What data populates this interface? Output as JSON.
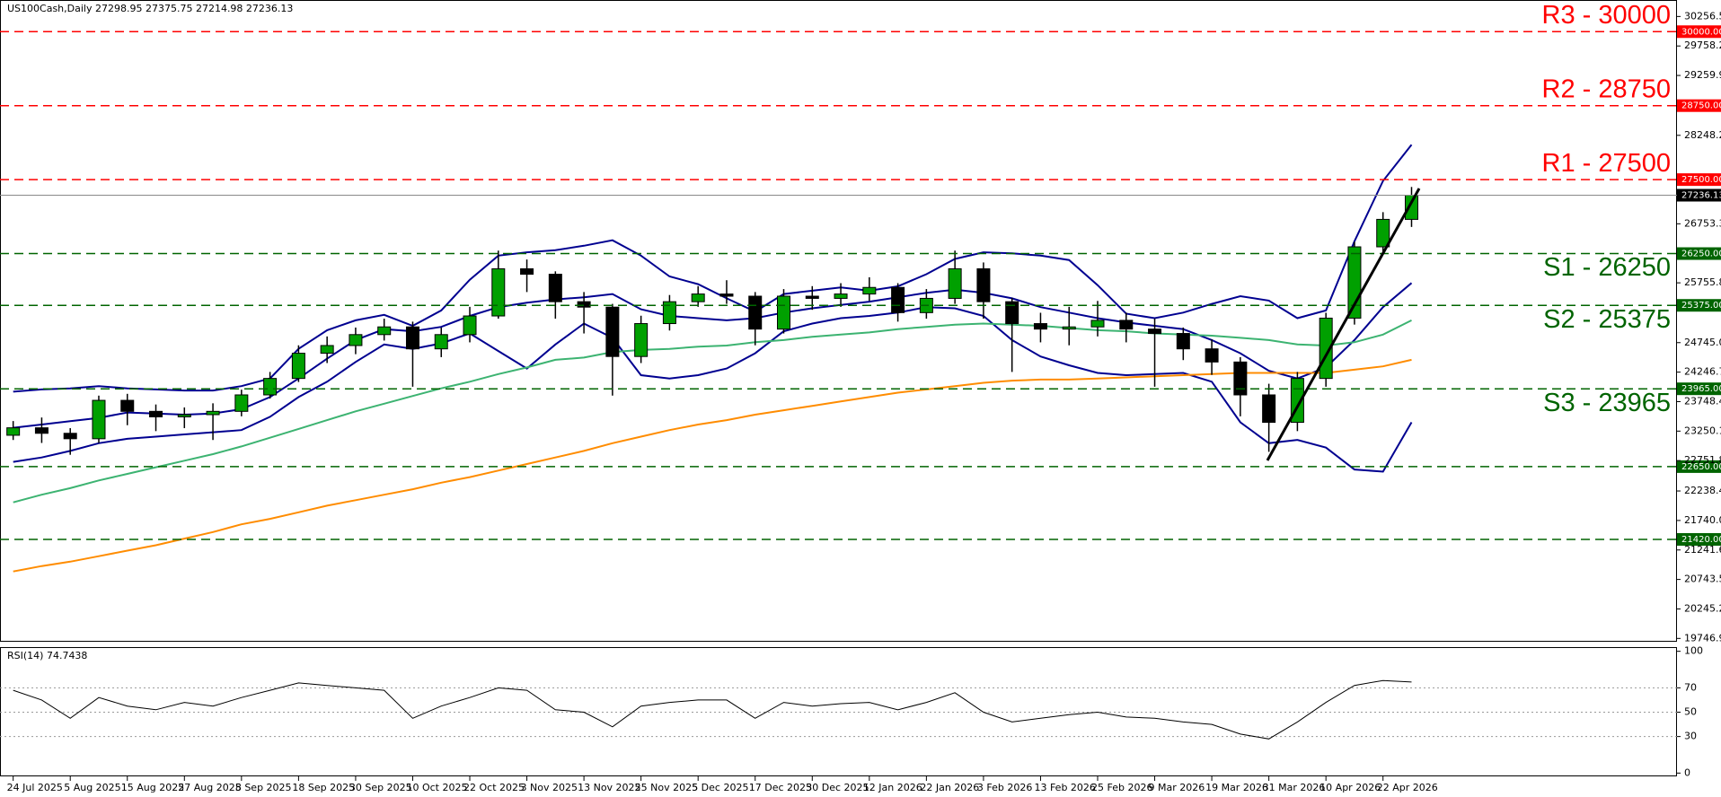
{
  "chart_data": [
    {
      "type": "candlestick",
      "title": "US100Cash,Daily  27298.95 27375.75 27214.98 27236.13",
      "categories": [
        "24 Jul 2025",
        null,
        "5 Aug 2025",
        null,
        "15 Aug 2025",
        null,
        "27 Aug 2025",
        null,
        "8 Sep 2025",
        null,
        "18 Sep 2025",
        null,
        "30 Sep 2025",
        null,
        "10 Oct 2025",
        null,
        "22 Oct 2025",
        null,
        "3 Nov 2025",
        null,
        "13 Nov 2025",
        null,
        "25 Nov 2025",
        null,
        "5 Dec 2025",
        null,
        "17 Dec 2025",
        null,
        "30 Dec 2025",
        null,
        "12 Jan 2026",
        null,
        "22 Jan 2026",
        null,
        "3 Feb 2026",
        null,
        "13 Feb 2026",
        null,
        "25 Feb 2026",
        null,
        "9 Mar 2026",
        null,
        "19 Mar 2026",
        null,
        "31 Mar 2026",
        null,
        "10 Apr 2026",
        null,
        "22 Apr 2026",
        null
      ],
      "open": [
        23180,
        23306,
        23213,
        23121,
        23770,
        23584,
        23491,
        23528,
        23584,
        23862,
        24140,
        24566,
        24696,
        24881,
        25011,
        24640,
        24881,
        25196,
        25993,
        25901,
        25437,
        25345,
        24511,
        25067,
        25437,
        25567,
        25530,
        24974,
        25530,
        25493,
        25567,
        25678,
        25252,
        25493,
        25993,
        25437,
        25067,
        24974,
        25011,
        25122,
        24974,
        24900,
        24640,
        24418,
        23862,
        23398,
        24140,
        25159,
        26364,
        26828
      ],
      "high": [
        23420,
        23480,
        23300,
        23850,
        23880,
        23700,
        23650,
        23720,
        23950,
        24250,
        24700,
        24850,
        25000,
        25150,
        25100,
        25000,
        25350,
        26300,
        26150,
        25950,
        25600,
        25400,
        25200,
        25550,
        25700,
        25800,
        25600,
        25650,
        25700,
        25750,
        25850,
        25750,
        25650,
        26300,
        26100,
        25500,
        25250,
        25350,
        25450,
        25250,
        25150,
        25000,
        24800,
        24500,
        24050,
        24250,
        25250,
        26450,
        26950,
        27375.75
      ],
      "low": [
        23100,
        23050,
        22850,
        23050,
        23350,
        23250,
        23300,
        23100,
        23500,
        23800,
        24080,
        24400,
        24550,
        24780,
        24000,
        24500,
        24750,
        25150,
        25600,
        25150,
        24900,
        23850,
        24400,
        24950,
        25350,
        25400,
        24700,
        24900,
        25300,
        25350,
        25450,
        25100,
        25150,
        25400,
        25150,
        24250,
        24750,
        24700,
        24850,
        24750,
        24000,
        24450,
        24200,
        23500,
        22900,
        23250,
        24000,
        25050,
        26250,
        26700
      ],
      "close": [
        23306,
        23213,
        23121,
        23770,
        23584,
        23491,
        23528,
        23584,
        23862,
        24140,
        24566,
        24696,
        24881,
        25011,
        24640,
        24881,
        25196,
        25993,
        25901,
        25437,
        25345,
        24511,
        25067,
        25437,
        25567,
        25530,
        24974,
        25530,
        25493,
        25567,
        25678,
        25252,
        25493,
        25993,
        25437,
        25067,
        24974,
        25011,
        25122,
        24974,
        24900,
        24640,
        24418,
        23862,
        23398,
        24140,
        25159,
        26364,
        26828,
        27236.13
      ],
      "up_color": "#00a000",
      "down_color": "#000000",
      "lines": [
        {
          "color": "#000090",
          "values": [
            23917,
            23954,
            23973,
            24010,
            23973,
            23954,
            23936,
            23936,
            24010,
            24140,
            24640,
            24955,
            25122,
            25214,
            25030,
            25289,
            25808,
            26216,
            26271,
            26308,
            26382,
            26475,
            26216,
            25863,
            25734,
            25493,
            25271,
            25567,
            25623,
            25678,
            25623,
            25697,
            25901,
            26160,
            26271,
            26253,
            26216,
            26142,
            25716,
            25234,
            25159,
            25252,
            25400,
            25530,
            25456,
            25159,
            25289,
            26457,
            27477,
            28088
          ]
        },
        {
          "color": "#000090",
          "values": [
            23306,
            23362,
            23417,
            23473,
            23565,
            23547,
            23528,
            23547,
            23621,
            23825,
            24140,
            24474,
            24789,
            24974,
            24937,
            25011,
            25196,
            25345,
            25419,
            25475,
            25512,
            25567,
            25308,
            25196,
            25159,
            25122,
            25159,
            25252,
            25326,
            25382,
            25437,
            25512,
            25586,
            25641,
            25586,
            25493,
            25345,
            25252,
            25159,
            25085,
            25030,
            24974,
            24789,
            24566,
            24270,
            24140,
            24326,
            24789,
            25345,
            25753
          ]
        },
        {
          "color": "#000090",
          "values": [
            22731,
            22805,
            22916,
            23046,
            23120,
            23157,
            23194,
            23231,
            23268,
            23491,
            23825,
            24084,
            24418,
            24714,
            24640,
            24733,
            24900,
            24603,
            24307,
            24714,
            25067,
            24826,
            24196,
            24140,
            24196,
            24307,
            24566,
            24937,
            25067,
            25159,
            25197,
            25252,
            25345,
            25326,
            25197,
            24789,
            24511,
            24362,
            24233,
            24196,
            24214,
            24233,
            24084,
            23399,
            23046,
            23102,
            22972,
            22602,
            22565,
            23399
          ]
        },
        {
          "color": "#3cb371",
          "values": [
            22046,
            22175,
            22286,
            22416,
            22527,
            22639,
            22750,
            22861,
            22991,
            23139,
            23287,
            23436,
            23584,
            23713,
            23843,
            23973,
            24084,
            24214,
            24326,
            24455,
            24492,
            24585,
            24622,
            24640,
            24677,
            24696,
            24752,
            24789,
            24844,
            24881,
            24918,
            24974,
            25011,
            25048,
            25067,
            25048,
            25030,
            24992,
            24955,
            24937,
            24900,
            24881,
            24863,
            24826,
            24789,
            24714,
            24696,
            24752,
            24881,
            25122
          ]
        },
        {
          "color": "#ff8c00",
          "values": [
            20878,
            20970,
            21044,
            21137,
            21230,
            21322,
            21434,
            21545,
            21675,
            21767,
            21878,
            21990,
            22082,
            22175,
            22268,
            22379,
            22472,
            22583,
            22694,
            22805,
            22916,
            23046,
            23157,
            23268,
            23362,
            23436,
            23528,
            23602,
            23677,
            23751,
            23825,
            23899,
            23954,
            24010,
            24066,
            24103,
            24121,
            24121,
            24140,
            24158,
            24177,
            24196,
            24214,
            24233,
            24233,
            24233,
            24233,
            24288,
            24344,
            24455
          ]
        }
      ],
      "levels": [
        {
          "name": "R3 - 30000",
          "value": 30000,
          "label": "30000.00",
          "color": "#ff0000"
        },
        {
          "name": "R2 - 28750",
          "value": 28750,
          "label": "28750.00",
          "color": "#ff0000"
        },
        {
          "name": "R1 - 27500",
          "value": 27500,
          "label": "27500.00",
          "color": "#ff0000"
        },
        {
          "name": "S1 - 26250",
          "value": 26250,
          "label": "26250.00",
          "color": "#006400"
        },
        {
          "name": "S2 - 25375",
          "value": 25375,
          "label": "25375.00",
          "color": "#006400"
        },
        {
          "name": "S3 - 23965",
          "value": 23965,
          "label": "23965.00",
          "color": "#006400"
        },
        {
          "value": 22650,
          "label": "22650.00",
          "color": "#006400"
        },
        {
          "value": 21420,
          "label": "21420.00",
          "color": "#006400"
        }
      ],
      "current_price": {
        "value": 27236.13,
        "label": "27236.13"
      },
      "ylim": [
        19691,
        30535
      ],
      "yticks": [
        {
          "value": 30256.5,
          "label": "30256.50"
        },
        {
          "value": 29758.2,
          "label": "29758.20"
        },
        {
          "value": 29259.9,
          "label": "29259.90"
        },
        {
          "value": 28248.2,
          "label": "28248.20"
        },
        {
          "value": 26753.3,
          "label": "26753.30"
        },
        {
          "value": 25755.8,
          "label": "25755.80"
        },
        {
          "value": 24745,
          "label": "24745.00"
        },
        {
          "value": 24246.7,
          "label": "24246.70"
        },
        {
          "value": 23748.4,
          "label": "23748.40"
        },
        {
          "value": 23250.1,
          "label": "23250.10"
        },
        {
          "value": 22751.8,
          "label": "22751.80"
        },
        {
          "value": 22238.4,
          "label": "22238.40"
        },
        {
          "value": 21740,
          "label": "21740.00"
        },
        {
          "value": 21241.6,
          "label": "21241.60"
        },
        {
          "value": 20743.5,
          "label": "20743.50"
        },
        {
          "value": 20245.2,
          "label": "20245.20"
        },
        {
          "value": 19746.9,
          "label": "19746.90"
        }
      ]
    },
    {
      "type": "line",
      "title": "RSI(14) 74.7438",
      "color": "#000000",
      "values": [
        68,
        60,
        45,
        62,
        55,
        52,
        58,
        55,
        62,
        68,
        74,
        72,
        70,
        68,
        45,
        55,
        62,
        70,
        68,
        52,
        50,
        38,
        55,
        58,
        60,
        60,
        45,
        58,
        55,
        57,
        58,
        52,
        58,
        66,
        50,
        42,
        45,
        48,
        50,
        46,
        45,
        42,
        40,
        32,
        28,
        42,
        58,
        72,
        76,
        74.7438
      ],
      "ylim": [
        -2.7,
        102.7
      ],
      "yticks": [
        0,
        30,
        50,
        70,
        100
      ]
    }
  ]
}
